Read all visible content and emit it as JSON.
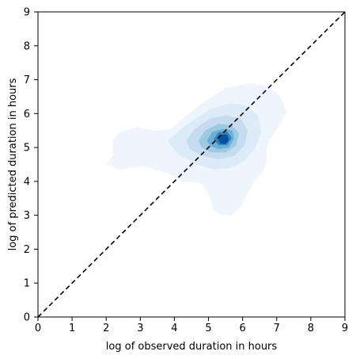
{
  "chart_data": {
    "type": "contour",
    "title": "",
    "xlabel": "log of observed duration in hours",
    "ylabel": "log of predicted duration in hours",
    "xlim": [
      0,
      9
    ],
    "ylim": [
      0,
      9
    ],
    "xticks": [
      "0",
      "1",
      "2",
      "3",
      "4",
      "5",
      "6",
      "7",
      "8",
      "9"
    ],
    "yticks": [
      "0",
      "1",
      "2",
      "3",
      "4",
      "5",
      "6",
      "7",
      "8",
      "9"
    ],
    "grid": false,
    "legend": "none",
    "reference_line": {
      "x": [
        0,
        9
      ],
      "y": [
        0,
        9
      ],
      "style": "dashed",
      "color": "#000000"
    },
    "density_peak": {
      "x": 5.45,
      "y": 5.25
    },
    "density_levels": [
      {
        "level": 1,
        "color": "#eef5fd",
        "points": [
          [
            2.0,
            4.5
          ],
          [
            2.2,
            4.75
          ],
          [
            2.2,
            5.0
          ],
          [
            2.2,
            5.25
          ],
          [
            2.4,
            5.45
          ],
          [
            2.9,
            5.6
          ],
          [
            3.4,
            5.5
          ],
          [
            3.9,
            5.55
          ],
          [
            4.3,
            5.9
          ],
          [
            4.8,
            6.3
          ],
          [
            5.5,
            6.75
          ],
          [
            6.2,
            6.9
          ],
          [
            6.8,
            6.8
          ],
          [
            7.1,
            6.5
          ],
          [
            7.3,
            6.05
          ],
          [
            7.05,
            5.6
          ],
          [
            6.8,
            5.25
          ],
          [
            6.7,
            4.95
          ],
          [
            6.7,
            4.6
          ],
          [
            6.6,
            4.3
          ],
          [
            6.35,
            4.0
          ],
          [
            6.15,
            3.65
          ],
          [
            5.95,
            3.25
          ],
          [
            5.7,
            3.0
          ],
          [
            5.4,
            3.0
          ],
          [
            5.15,
            3.15
          ],
          [
            5.05,
            3.5
          ],
          [
            4.8,
            3.95
          ],
          [
            4.2,
            4.0
          ],
          [
            3.8,
            4.25
          ],
          [
            3.1,
            4.45
          ],
          [
            2.4,
            4.35
          ],
          [
            2.0,
            4.5
          ]
        ]
      },
      {
        "level": 2,
        "color": "#ddeaf7",
        "points": [
          [
            3.8,
            5.2
          ],
          [
            4.2,
            5.55
          ],
          [
            4.6,
            5.85
          ],
          [
            5.1,
            6.15
          ],
          [
            5.6,
            6.3
          ],
          [
            6.1,
            6.25
          ],
          [
            6.45,
            5.95
          ],
          [
            6.55,
            5.45
          ],
          [
            6.35,
            4.95
          ],
          [
            6.05,
            4.6
          ],
          [
            5.65,
            4.4
          ],
          [
            5.15,
            4.35
          ],
          [
            4.65,
            4.5
          ],
          [
            4.1,
            4.8
          ],
          [
            3.8,
            5.2
          ]
        ]
      },
      {
        "level": 3,
        "color": "#c6dbef",
        "points": [
          [
            4.35,
            5.2
          ],
          [
            4.6,
            5.55
          ],
          [
            5.05,
            5.85
          ],
          [
            5.5,
            5.95
          ],
          [
            5.95,
            5.85
          ],
          [
            6.15,
            5.5
          ],
          [
            6.05,
            5.05
          ],
          [
            5.75,
            4.75
          ],
          [
            5.3,
            4.65
          ],
          [
            4.85,
            4.75
          ],
          [
            4.45,
            4.95
          ],
          [
            4.35,
            5.2
          ]
        ]
      },
      {
        "level": 4,
        "color": "#9ecae1",
        "points": [
          [
            4.7,
            5.2
          ],
          [
            4.9,
            5.5
          ],
          [
            5.3,
            5.7
          ],
          [
            5.7,
            5.65
          ],
          [
            5.9,
            5.4
          ],
          [
            5.8,
            5.05
          ],
          [
            5.5,
            4.85
          ],
          [
            5.1,
            4.85
          ],
          [
            4.8,
            5.0
          ],
          [
            4.7,
            5.2
          ]
        ]
      },
      {
        "level": 5,
        "color": "#6baed6",
        "points": [
          [
            4.95,
            5.2
          ],
          [
            5.1,
            5.45
          ],
          [
            5.4,
            5.55
          ],
          [
            5.7,
            5.5
          ],
          [
            5.75,
            5.25
          ],
          [
            5.6,
            5.0
          ],
          [
            5.3,
            4.95
          ],
          [
            5.05,
            5.05
          ],
          [
            4.95,
            5.2
          ]
        ]
      },
      {
        "level": 6,
        "color": "#3182bd",
        "points": [
          [
            5.15,
            5.25
          ],
          [
            5.3,
            5.45
          ],
          [
            5.55,
            5.47
          ],
          [
            5.68,
            5.28
          ],
          [
            5.55,
            5.08
          ],
          [
            5.3,
            5.07
          ],
          [
            5.15,
            5.25
          ]
        ]
      },
      {
        "level": 7,
        "color": "#08519c",
        "points": [
          [
            5.28,
            5.25
          ],
          [
            5.38,
            5.38
          ],
          [
            5.55,
            5.38
          ],
          [
            5.6,
            5.22
          ],
          [
            5.5,
            5.1
          ],
          [
            5.35,
            5.12
          ],
          [
            5.28,
            5.25
          ]
        ]
      }
    ]
  }
}
